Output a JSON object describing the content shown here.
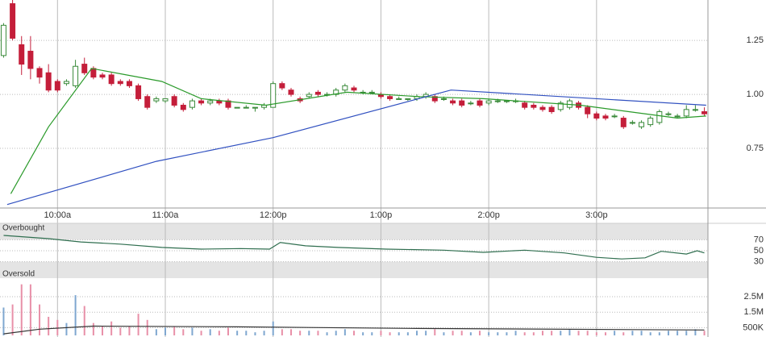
{
  "chart_data": [
    {
      "type": "candlestick",
      "x": [
        570,
        575,
        580,
        585,
        590,
        595,
        600,
        605,
        610,
        615,
        620,
        625,
        630,
        635,
        640,
        645,
        650,
        655,
        660,
        665,
        670,
        675,
        680,
        685,
        690,
        695,
        700,
        705,
        710,
        715,
        720,
        725,
        730,
        735,
        740,
        745,
        750,
        755,
        760,
        765,
        770,
        775,
        780,
        785,
        790,
        795,
        800,
        805,
        810,
        815,
        820,
        825,
        830,
        835,
        840,
        845,
        850,
        855,
        860,
        865,
        870,
        875,
        880,
        885,
        890,
        895,
        900,
        905,
        910,
        915,
        920,
        925,
        930,
        935,
        940,
        945,
        950,
        955,
        960
      ],
      "open": [
        1.18,
        1.42,
        1.23,
        1.2,
        1.12,
        1.1,
        1.06,
        1.05,
        1.04,
        1.14,
        1.12,
        1.09,
        1.09,
        1.06,
        1.06,
        1.04,
        0.99,
        0.97,
        0.97,
        0.99,
        0.95,
        0.94,
        0.97,
        0.96,
        0.97,
        0.97,
        0.94,
        0.94,
        0.94,
        0.94,
        0.94,
        1.05,
        1.02,
        0.98,
        0.99,
        1.01,
        1.0,
        1.0,
        1.02,
        1.03,
        1.01,
        1.01,
        1.0,
        0.99,
        0.98,
        0.98,
        0.98,
        0.99,
        0.99,
        0.98,
        0.97,
        0.97,
        0.96,
        0.97,
        0.96,
        0.97,
        0.97,
        0.97,
        0.96,
        0.95,
        0.94,
        0.94,
        0.93,
        0.94,
        0.96,
        0.94,
        0.91,
        0.9,
        0.9,
        0.89,
        0.87,
        0.85,
        0.86,
        0.87,
        0.91,
        0.9,
        0.9,
        0.93,
        0.92
      ],
      "high": [
        1.33,
        1.44,
        1.27,
        1.27,
        1.13,
        1.14,
        1.07,
        1.07,
        1.16,
        1.17,
        1.13,
        1.1,
        1.1,
        1.07,
        1.07,
        1.05,
        1.0,
        0.99,
        0.98,
        1.0,
        0.96,
        0.98,
        0.98,
        0.98,
        0.98,
        0.98,
        0.94,
        0.95,
        0.94,
        0.96,
        1.06,
        1.06,
        1.03,
        0.99,
        1.01,
        1.02,
        1.01,
        1.03,
        1.05,
        1.04,
        1.02,
        1.02,
        1.01,
        1.0,
        0.99,
        0.98,
        1.0,
        1.01,
        1.0,
        0.99,
        0.98,
        0.98,
        0.97,
        0.98,
        0.98,
        0.98,
        0.97,
        0.98,
        0.97,
        0.96,
        0.95,
        0.95,
        0.97,
        0.98,
        0.97,
        0.95,
        0.92,
        0.91,
        0.91,
        0.9,
        0.88,
        0.88,
        0.9,
        0.93,
        0.92,
        0.91,
        0.95,
        0.95,
        0.94
      ],
      "low": [
        1.17,
        1.25,
        1.09,
        1.07,
        1.05,
        1.01,
        1.01,
        1.04,
        1.03,
        1.09,
        1.07,
        1.07,
        1.04,
        1.04,
        1.03,
        0.97,
        0.93,
        0.96,
        0.96,
        0.94,
        0.92,
        0.93,
        0.95,
        0.95,
        0.95,
        0.93,
        0.94,
        0.94,
        0.92,
        0.93,
        0.94,
        1.02,
        0.99,
        0.96,
        0.98,
        0.99,
        0.99,
        0.99,
        1.01,
        1.01,
        1.0,
        1.0,
        0.98,
        0.97,
        0.98,
        0.97,
        0.97,
        0.98,
        0.96,
        0.97,
        0.95,
        0.94,
        0.95,
        0.94,
        0.95,
        0.96,
        0.96,
        0.96,
        0.93,
        0.93,
        0.92,
        0.91,
        0.92,
        0.93,
        0.93,
        0.89,
        0.88,
        0.88,
        0.89,
        0.84,
        0.86,
        0.84,
        0.85,
        0.86,
        0.9,
        0.89,
        0.89,
        0.92,
        0.9
      ],
      "close": [
        1.32,
        1.26,
        1.14,
        1.12,
        1.08,
        1.02,
        1.02,
        1.06,
        1.13,
        1.1,
        1.08,
        1.08,
        1.05,
        1.05,
        1.04,
        0.98,
        0.94,
        0.98,
        0.98,
        0.95,
        0.93,
        0.97,
        0.96,
        0.97,
        0.96,
        0.94,
        0.94,
        0.94,
        0.94,
        0.95,
        1.05,
        1.03,
        1.0,
        0.97,
        1.0,
        1.0,
        1.0,
        1.02,
        1.04,
        1.02,
        1.01,
        1.01,
        0.99,
        0.98,
        0.98,
        0.98,
        0.99,
        1.0,
        0.97,
        0.98,
        0.96,
        0.95,
        0.96,
        0.95,
        0.97,
        0.97,
        0.97,
        0.97,
        0.94,
        0.94,
        0.93,
        0.92,
        0.96,
        0.97,
        0.94,
        0.91,
        0.89,
        0.89,
        0.9,
        0.85,
        0.87,
        0.87,
        0.89,
        0.92,
        0.91,
        0.9,
        0.93,
        0.93,
        0.91
      ],
      "up_color": "#3a8a3a",
      "down_color": "#c41e3a",
      "series": [
        {
          "color": "#2a9a2a",
          "x": [
            574,
            595,
            619,
            658,
            680,
            716,
            761,
            801,
            837,
            891,
            918,
            945,
            961
          ],
          "values": [
            0.54,
            0.85,
            1.12,
            1.06,
            0.98,
            0.95,
            1.01,
            0.99,
            0.98,
            0.95,
            0.92,
            0.89,
            0.9
          ]
        },
        {
          "color": "#3050c0",
          "x": [
            572,
            655,
            720,
            819,
            961
          ],
          "values": [
            0.49,
            0.69,
            0.8,
            1.02,
            0.95
          ]
        }
      ],
      "xlim": [
        568,
        962
      ],
      "xticks": [
        {
          "value": 600,
          "label": "10:00a"
        },
        {
          "value": 660,
          "label": "11:00a"
        },
        {
          "value": 720,
          "label": "12:00p"
        },
        {
          "value": 780,
          "label": "1:00p"
        },
        {
          "value": 840,
          "label": "2:00p"
        },
        {
          "value": 900,
          "label": "3:00p"
        }
      ],
      "ylim": [
        0.474,
        1.437
      ],
      "yticks": [
        1.25,
        {
          "value": 1,
          "label": "1.00"
        },
        0.75
      ],
      "grid": true
    },
    {
      "type": "line",
      "x": [
        570,
        595,
        613,
        635,
        658,
        680,
        702,
        718,
        724,
        738,
        756,
        783,
        815,
        837,
        860,
        882,
        900,
        914,
        927,
        936,
        950,
        956,
        960
      ],
      "values": [
        78,
        72,
        66,
        62,
        56,
        53,
        54,
        53,
        65,
        59,
        56,
        53,
        51,
        47,
        51,
        46,
        38,
        35,
        37,
        49,
        44,
        50,
        46
      ],
      "color": "#2f6e4f",
      "ylim": [
        0,
        100
      ],
      "yticks": [
        70,
        50,
        30
      ],
      "bands": [
        {
          "label": "Overbought",
          "from": 70,
          "to": 100
        },
        {
          "label": "Oversold",
          "from": 0,
          "to": 30
        }
      ]
    },
    {
      "type": "bar",
      "x": [
        570,
        575,
        580,
        585,
        590,
        595,
        600,
        605,
        610,
        615,
        620,
        625,
        630,
        635,
        640,
        645,
        650,
        655,
        660,
        665,
        670,
        675,
        680,
        685,
        690,
        695,
        700,
        705,
        710,
        715,
        720,
        725,
        730,
        735,
        740,
        745,
        750,
        755,
        760,
        765,
        770,
        775,
        780,
        785,
        790,
        795,
        800,
        805,
        810,
        815,
        820,
        825,
        830,
        835,
        840,
        845,
        850,
        855,
        860,
        865,
        870,
        875,
        880,
        885,
        890,
        895,
        900,
        905,
        910,
        915,
        920,
        925,
        930,
        935,
        940,
        945,
        950,
        955,
        960
      ],
      "values": [
        1800000,
        2000000,
        3300000,
        3300000,
        2000000,
        1200000,
        1000000,
        800000,
        2600000,
        1900000,
        800000,
        600000,
        900000,
        500000,
        600000,
        1400000,
        1000000,
        400000,
        500000,
        600000,
        400000,
        500000,
        300000,
        400000,
        300000,
        500000,
        300000,
        300000,
        200000,
        300000,
        900000,
        400000,
        400000,
        300000,
        300000,
        300000,
        200000,
        300000,
        400000,
        300000,
        200000,
        200000,
        300000,
        200000,
        200000,
        200000,
        300000,
        300000,
        400000,
        200000,
        300000,
        300000,
        200000,
        300000,
        200000,
        200000,
        200000,
        300000,
        200000,
        200000,
        300000,
        300000,
        300000,
        400000,
        300000,
        300000,
        200000,
        200000,
        300000,
        200000,
        300000,
        300000,
        200000,
        200000,
        300000,
        300000,
        300000,
        400000,
        300000
      ],
      "up_color": "#7fa7d0",
      "down_color": "#e890a8",
      "average": {
        "color": "#333333",
        "x": [
          570,
          590,
          620,
          700,
          800,
          960
        ],
        "values": [
          100000,
          400000,
          600000,
          550000,
          450000,
          350000
        ]
      },
      "ylim": [
        0,
        3700000
      ],
      "yticks": [
        {
          "value": 2500000,
          "label": "2.5M"
        },
        {
          "value": 1500000,
          "label": "1.5M"
        },
        {
          "value": 500000,
          "label": "500K"
        }
      ]
    }
  ]
}
